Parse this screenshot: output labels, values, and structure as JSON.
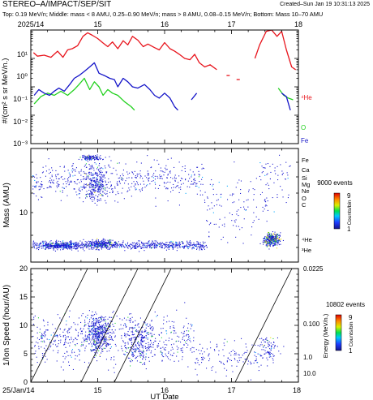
{
  "header": {
    "title": "STEREO–A/IMPACT/SEP/SIT",
    "created": "Created–Sun Jan 19 10:31:13 2025",
    "subtitle": "Top: 0.19 MeV/n; Middle: mass < 8 AMU, 0.25–0.90 MeV/n; mass > 8 AMU, 0.08–0.15 MeV/n; Bottom: Mass 10–70 AMU"
  },
  "colors": {
    "red": "#e8141c",
    "green": "#22d11e",
    "blue": "#1414c8",
    "frame": "#000000"
  },
  "chart_data": [
    {
      "type": "line",
      "panel": "top",
      "ylabel": "#/(cm² s sr MeV/n.)",
      "x_top_labels": [
        "2025/14",
        "15",
        "16",
        "17",
        "18"
      ],
      "xlim": [
        14,
        18
      ],
      "yscale": "log",
      "ylim_exp": [
        -3,
        1
      ],
      "ytick_labels": [
        "10¹",
        "10⁰",
        "10⁻¹",
        "10⁻²",
        "10⁻³"
      ],
      "series": [
        {
          "name": "⁴He",
          "color": "red",
          "segments": [
            [
              [
                14.04,
                1.6
              ],
              [
                14.1,
                1.2
              ],
              [
                14.2,
                1.3
              ],
              [
                14.3,
                1.1
              ],
              [
                14.4,
                1.8
              ],
              [
                14.48,
                1.1
              ],
              [
                14.55,
                2.0
              ],
              [
                14.62,
                2.2
              ],
              [
                14.7,
                2.8
              ],
              [
                14.78,
                6.0
              ],
              [
                14.85,
                8.0
              ],
              [
                14.92,
                6.5
              ],
              [
                15.0,
                5.0
              ],
              [
                15.08,
                3.5
              ],
              [
                15.15,
                2.6
              ],
              [
                15.22,
                3.8
              ],
              [
                15.3,
                2.2
              ],
              [
                15.38,
                4.2
              ],
              [
                15.45,
                3.0
              ],
              [
                15.52,
                6.0
              ],
              [
                15.6,
                4.4
              ],
              [
                15.68,
                2.6
              ],
              [
                15.75,
                3.2
              ],
              [
                15.85,
                2.4
              ],
              [
                15.92,
                2.0
              ],
              [
                16.0,
                3.6
              ],
              [
                16.08,
                2.2
              ],
              [
                16.15,
                1.8
              ],
              [
                16.22,
                1.4
              ],
              [
                16.3,
                1.0
              ],
              [
                16.38,
                0.9
              ],
              [
                16.45,
                1.4
              ],
              [
                16.52,
                0.7
              ],
              [
                16.6,
                0.5
              ],
              [
                16.68,
                0.6
              ],
              [
                16.78,
                0.4
              ]
            ],
            [
              [
                16.95,
                0.25
              ]
            ],
            [
              [
                17.1,
                0.18
              ]
            ],
            [
              [
                17.35,
                1.0
              ],
              [
                17.42,
                3.0
              ],
              [
                17.52,
                9.0
              ],
              [
                17.6,
                10.0
              ],
              [
                17.68,
                6.0
              ],
              [
                17.75,
                9.0
              ],
              [
                17.82,
                2.0
              ],
              [
                17.9,
                0.5
              ],
              [
                17.96,
                0.4
              ]
            ]
          ]
        },
        {
          "name": "O",
          "color": "green",
          "segments": [
            [
              [
                14.05,
                0.025
              ],
              [
                14.15,
                0.045
              ],
              [
                14.25,
                0.06
              ],
              [
                14.35,
                0.05
              ],
              [
                14.45,
                0.07
              ],
              [
                14.55,
                0.05
              ],
              [
                14.65,
                0.08
              ],
              [
                14.72,
                0.12
              ],
              [
                14.8,
                0.2
              ],
              [
                14.88,
                0.08
              ],
              [
                14.95,
                0.15
              ],
              [
                15.02,
                0.1
              ],
              [
                15.08,
                0.05
              ],
              [
                15.15,
                0.08
              ],
              [
                15.22,
                0.06
              ],
              [
                15.3,
                0.05
              ],
              [
                15.4,
                0.03
              ],
              [
                15.5,
                0.02
              ],
              [
                15.55,
                0.015
              ]
            ],
            [
              [
                17.7,
                0.09
              ],
              [
                17.78,
                0.05
              ],
              [
                17.85,
                0.04
              ],
              [
                17.92,
                0.035
              ]
            ]
          ]
        },
        {
          "name": "Fe",
          "color": "blue",
          "segments": [
            [
              [
                14.05,
                0.05
              ],
              [
                14.12,
                0.08
              ],
              [
                14.2,
                0.06
              ],
              [
                14.28,
                0.05
              ],
              [
                14.35,
                0.07
              ],
              [
                14.42,
                0.09
              ],
              [
                14.5,
                0.07
              ],
              [
                14.58,
                0.12
              ],
              [
                14.65,
                0.2
              ],
              [
                14.72,
                0.25
              ],
              [
                14.8,
                0.35
              ],
              [
                14.88,
                0.5
              ],
              [
                14.95,
                0.7
              ],
              [
                15.02,
                0.3
              ],
              [
                15.1,
                0.25
              ],
              [
                15.18,
                0.2
              ],
              [
                15.25,
                0.18
              ],
              [
                15.3,
                0.1
              ],
              [
                15.38,
                0.2
              ],
              [
                15.45,
                0.15
              ],
              [
                15.52,
                0.1
              ],
              [
                15.6,
                0.09
              ],
              [
                15.7,
                0.12
              ],
              [
                15.78,
                0.08
              ],
              [
                15.85,
                0.05
              ],
              [
                15.92,
                0.04
              ],
              [
                16.0,
                0.06
              ],
              [
                16.08,
                0.04
              ],
              [
                16.15,
                0.02
              ],
              [
                16.2,
                0.015
              ]
            ],
            [
              [
                16.4,
                0.035
              ],
              [
                16.48,
                0.06
              ]
            ],
            [
              [
                17.75,
                0.06
              ],
              [
                17.82,
                0.045
              ],
              [
                17.88,
                0.015
              ]
            ]
          ]
        }
      ]
    },
    {
      "type": "scatter",
      "panel": "middle",
      "ylabel": "Mass (AMU)",
      "xlim": [
        14,
        18
      ],
      "yscale": "log",
      "ytick_labels": [
        "10"
      ],
      "species_labels": [
        "Fe",
        "Ca",
        "Si",
        "Mg",
        "Ne",
        "O",
        "C",
        "⁴He",
        "³He"
      ],
      "colorbar": {
        "events": "9000 events",
        "label": "Counts/bin",
        "max": "9",
        "min": "1"
      }
    },
    {
      "type": "scatter",
      "panel": "bottom",
      "xlabel": "UT Date",
      "ylabel": "1/Ion Speed (hour/AU)",
      "x_bottom_labels": [
        "25/Jan/14",
        "15",
        "16",
        "17",
        "18"
      ],
      "xlim": [
        14,
        18
      ],
      "ylim": [
        0,
        20
      ],
      "ytick_labels": [
        "0",
        "5",
        "10",
        "15",
        "20"
      ],
      "right_axis": {
        "label": "Energy (MeV/n.)",
        "ticks": [
          "0.0225",
          "0.100",
          "1.0",
          "10.0"
        ]
      },
      "colorbar": {
        "events": "10802 events",
        "label": "Counts/bin",
        "max": "9",
        "min": "1"
      }
    }
  ]
}
